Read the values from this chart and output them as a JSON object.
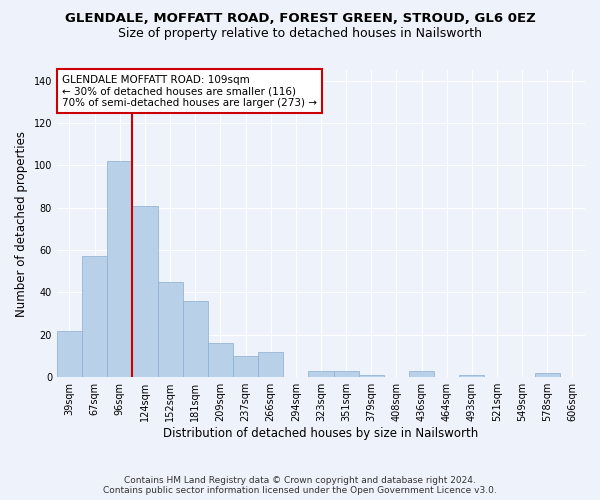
{
  "title": "GLENDALE, MOFFATT ROAD, FOREST GREEN, STROUD, GL6 0EZ",
  "subtitle": "Size of property relative to detached houses in Nailsworth",
  "xlabel": "Distribution of detached houses by size in Nailsworth",
  "ylabel": "Number of detached properties",
  "footer_line1": "Contains HM Land Registry data © Crown copyright and database right 2024.",
  "footer_line2": "Contains public sector information licensed under the Open Government Licence v3.0.",
  "categories": [
    "39sqm",
    "67sqm",
    "96sqm",
    "124sqm",
    "152sqm",
    "181sqm",
    "209sqm",
    "237sqm",
    "266sqm",
    "294sqm",
    "323sqm",
    "351sqm",
    "379sqm",
    "408sqm",
    "436sqm",
    "464sqm",
    "493sqm",
    "521sqm",
    "549sqm",
    "578sqm",
    "606sqm"
  ],
  "values": [
    22,
    57,
    102,
    81,
    45,
    36,
    16,
    10,
    12,
    0,
    3,
    3,
    1,
    0,
    3,
    0,
    1,
    0,
    0,
    2,
    0
  ],
  "bar_color": "#b8d0e8",
  "bar_edge_color": "#8aafd0",
  "red_line_index": 2,
  "annotation_title": "GLENDALE MOFFATT ROAD: 109sqm",
  "annotation_line1": "← 30% of detached houses are smaller (116)",
  "annotation_line2": "70% of semi-detached houses are larger (273) →",
  "annotation_box_color": "#ffffff",
  "annotation_box_edge_color": "#cc0000",
  "red_line_color": "#cc0000",
  "ylim": [
    0,
    145
  ],
  "yticks": [
    0,
    20,
    40,
    60,
    80,
    100,
    120,
    140
  ],
  "background_color": "#eef2fb",
  "grid_color": "#ffffff",
  "title_fontsize": 9.5,
  "subtitle_fontsize": 9,
  "axis_label_fontsize": 8.5,
  "tick_fontsize": 7,
  "footer_fontsize": 6.5
}
